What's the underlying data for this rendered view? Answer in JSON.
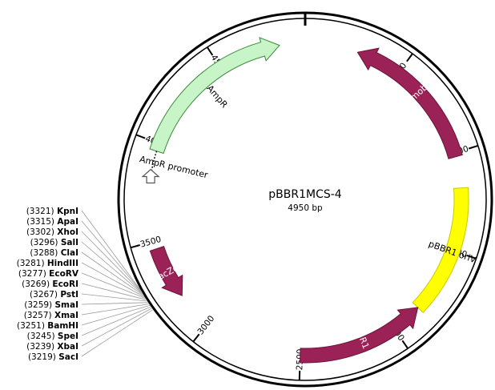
{
  "plasmid": {
    "name": "pBBR1MCS-4",
    "length_label": "4950 bp",
    "length_bp": 4950
  },
  "ticks": [
    {
      "bp": 500,
      "label": "500"
    },
    {
      "bp": 1000,
      "label": "1000"
    },
    {
      "bp": 1500,
      "label": "1500"
    },
    {
      "bp": 2000,
      "label": "2000"
    },
    {
      "bp": 2500,
      "label": "2500"
    },
    {
      "bp": 3000,
      "label": "3000"
    },
    {
      "bp": 3500,
      "label": "3500"
    },
    {
      "bp": 4000,
      "label": "4000"
    },
    {
      "bp": 4500,
      "label": "4500"
    }
  ],
  "features": [
    {
      "id": "mob",
      "label": "mob",
      "type": "arrow",
      "start": 270,
      "end": 1020,
      "direction": "ccw",
      "color": "#9b2257",
      "label_on_feature": true
    },
    {
      "id": "pBBR1-oriV",
      "label": "pBBR1 oriV",
      "type": "box",
      "start": 1180,
      "end": 1840,
      "color": "#ffff00",
      "label_on_feature": true
    },
    {
      "id": "pBBR1-Rep",
      "label": "pBBR1 Rep",
      "type": "arrow",
      "start": 1840,
      "end": 2500,
      "direction": "ccw",
      "color": "#9b2257",
      "label_on_feature": true
    },
    {
      "id": "lacZa",
      "label": "lacZα",
      "type": "arrow",
      "start": 3190,
      "end": 3460,
      "direction": "ccw",
      "color": "#9b2257",
      "label_on_feature": true
    },
    {
      "id": "AmpR",
      "label": "AmpR",
      "type": "arrow",
      "start": 3960,
      "end": 4820,
      "direction": "cw",
      "color": "#c8f5c8",
      "label_on_feature": false
    },
    {
      "id": "AmpR-promoter",
      "label": "AmpR promoter",
      "type": "arrow",
      "start": 3840,
      "end": 3960,
      "direction": "cw",
      "color": "#ffffff",
      "label_on_feature": false
    }
  ],
  "sites": [
    {
      "pos": "(3321)",
      "name": "KpnI"
    },
    {
      "pos": "(3315)",
      "name": "ApaI"
    },
    {
      "pos": "(3302)",
      "name": "XhoI"
    },
    {
      "pos": "(3296)",
      "name": "SalI"
    },
    {
      "pos": "(3288)",
      "name": "ClaI"
    },
    {
      "pos": "(3281)",
      "name": "HindIII"
    },
    {
      "pos": "(3277)",
      "name": "EcoRV"
    },
    {
      "pos": "(3269)",
      "name": "EcoRI"
    },
    {
      "pos": "(3267)",
      "name": "PstI"
    },
    {
      "pos": "(3259)",
      "name": "SmaI"
    },
    {
      "pos": "(3257)",
      "name": "XmaI"
    },
    {
      "pos": "(3251)",
      "name": "BamHI"
    },
    {
      "pos": "(3245)",
      "name": "SpeI"
    },
    {
      "pos": "(3239)",
      "name": "XbaI"
    },
    {
      "pos": "(3219)",
      "name": "SacI"
    }
  ]
}
